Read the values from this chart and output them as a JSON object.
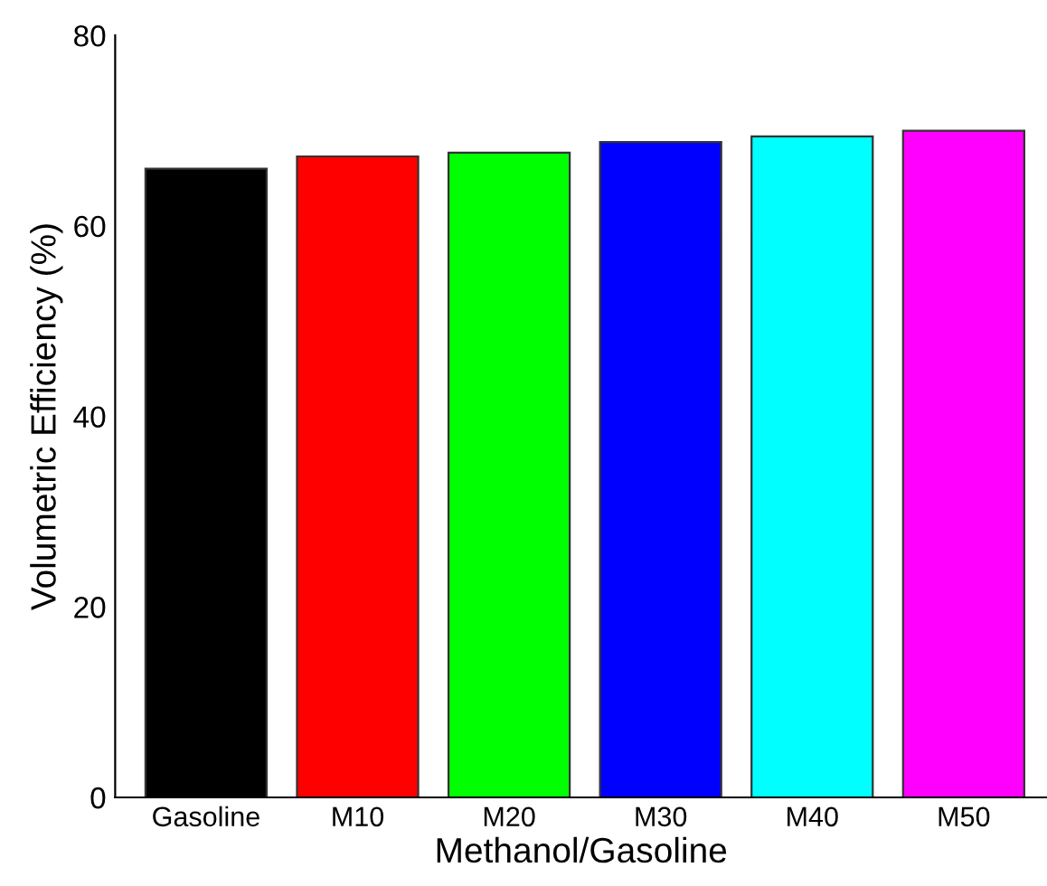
{
  "chart_data": {
    "type": "bar",
    "xlabel": "Methanol/Gasoline",
    "ylabel": "Volumetric Efficiency (%)",
    "categories": [
      "Gasoline",
      "M10",
      "M20",
      "M30",
      "M40",
      "M50"
    ],
    "values": [
      66.0,
      67.3,
      67.7,
      68.8,
      69.4,
      70.0
    ],
    "colors": [
      "#000000",
      "#ff0000",
      "#00ff00",
      "#0000ff",
      "#00ffff",
      "#ff00ff"
    ],
    "ylim": [
      0,
      80
    ],
    "yticks": [
      0,
      20,
      40,
      60,
      80
    ],
    "grid": false,
    "legend": false
  }
}
